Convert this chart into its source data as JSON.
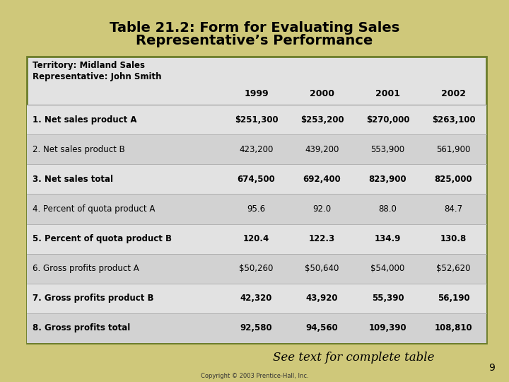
{
  "title_line1": "Table 21.2: Form for Evaluating Sales",
  "title_line2": "Representative’s Performance",
  "subtitle_line1": "Territory: Midland Sales",
  "subtitle_line2": "Representative: John Smith",
  "years": [
    "1999",
    "2000",
    "2001",
    "2002"
  ],
  "rows": [
    {
      "label": "1. Net sales product A",
      "bold": true,
      "values": [
        "$251,300",
        "$253,200",
        "$270,000",
        "$263,100"
      ]
    },
    {
      "label": "2. Net sales product B",
      "bold": false,
      "values": [
        "423,200",
        "439,200",
        "553,900",
        "561,900"
      ]
    },
    {
      "label": "3. Net sales total",
      "bold": true,
      "values": [
        "674,500",
        "692,400",
        "823,900",
        "825,000"
      ]
    },
    {
      "label": "4. Percent of quota product A",
      "bold": false,
      "values": [
        "95.6",
        "92.0",
        "88.0",
        "84.7"
      ]
    },
    {
      "label": "5. Percent of quota product B",
      "bold": true,
      "values": [
        "120.4",
        "122.3",
        "134.9",
        "130.8"
      ]
    },
    {
      "label": "6. Gross profits product A",
      "bold": false,
      "values": [
        "$50,260",
        "$50,640",
        "$54,000",
        "$52,620"
      ]
    },
    {
      "label": "7. Gross profits product B",
      "bold": true,
      "values": [
        "42,320",
        "43,920",
        "55,390",
        "56,190"
      ]
    },
    {
      "label": "8. Gross profits total",
      "bold": true,
      "values": [
        "92,580",
        "94,560",
        "109,390",
        "108,810"
      ]
    }
  ],
  "bg_color": "#cfc87a",
  "table_bg_light": "#e2e2e2",
  "table_bg_dark": "#d2d2d2",
  "border_color": "#6b7c2a",
  "title_color": "#000000",
  "footer_text": "See text for complete table",
  "page_number": "9",
  "copyright_text": "Copyright © 2003 Prentice-Hall, Inc."
}
